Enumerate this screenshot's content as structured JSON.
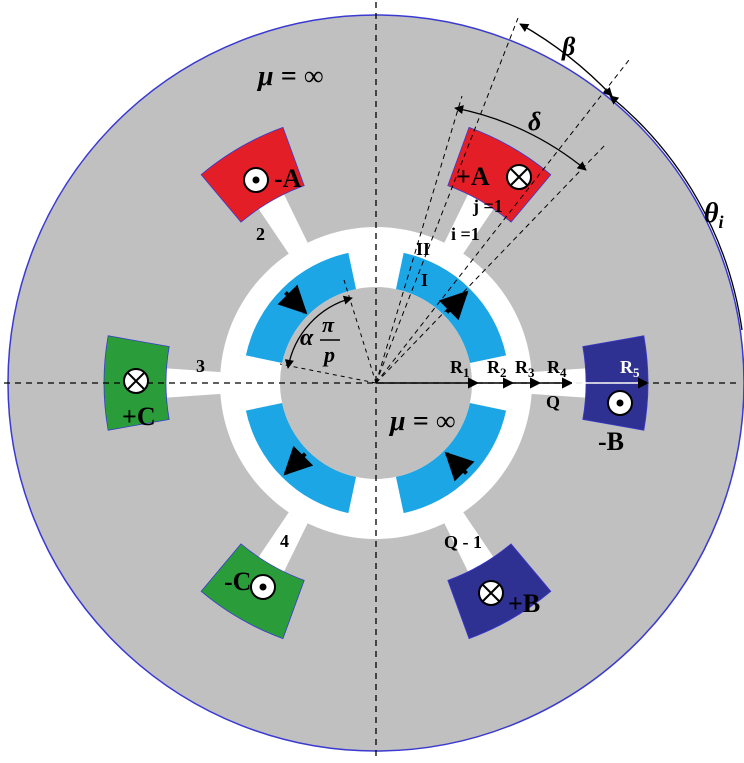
{
  "labels": {
    "mu_top": "μ = ∞",
    "mu_center": "μ = ∞",
    "beta": "β",
    "delta": "δ",
    "theta": "θ",
    "theta_sub": "i",
    "alpha": "α",
    "pi": "π",
    "p": "p",
    "coil_plus_a": "+A",
    "coil_minus_a": "-A",
    "coil_plus_b": "+B",
    "coil_minus_b": "-B",
    "coil_plus_c": "+C",
    "coil_minus_c": "-C",
    "j_label": "j =1",
    "i_label": "i =1",
    "region_ii": "II",
    "region_i": "I",
    "slot_2": "2",
    "slot_3": "3",
    "slot_4": "4",
    "slot_q": "Q",
    "slot_q1": "Q - 1",
    "r1": "R",
    "r1_sub": "1",
    "r2": "R",
    "r2_sub": "2",
    "r3": "R",
    "r3_sub": "3",
    "r4": "R",
    "r4_sub": "4",
    "r5": "R",
    "r5_sub": "5"
  },
  "colors": {
    "stator": "#c0c0c0",
    "stator_outline": "#3a3ad0",
    "magnet": "#1ca6e6",
    "phase_a": "#e41e26",
    "phase_b": "#2e3192",
    "phase_c": "#2a9d3a",
    "background": "#ffffff"
  },
  "icons": {
    "current_out": "dot-circle-icon",
    "current_in": "cross-circle-icon"
  }
}
